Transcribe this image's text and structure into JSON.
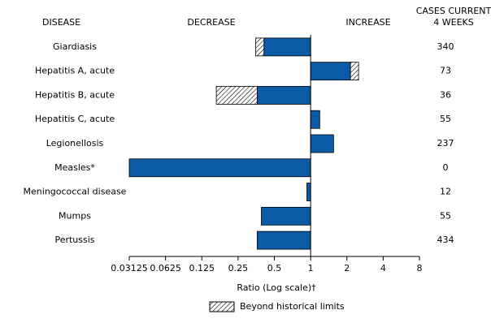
{
  "chart_data": {
    "type": "bar",
    "orientation": "horizontal",
    "log_scale": 2,
    "category_header": "DISEASE",
    "decrease_label": "DECREASE",
    "increase_label": "INCREASE",
    "cases_header": [
      "CASES CURRENT",
      "4 WEEKS"
    ],
    "categories": [
      "Giardiasis",
      "Hepatitis A, acute",
      "Hepatitis B, acute",
      "Hepatitis C, acute",
      "Legionellosis",
      "Measles*",
      "Meningococcal disease",
      "Mumps",
      "Pertussis"
    ],
    "values": [
      0.35,
      2.5,
      0.165,
      1.19,
      1.55,
      0.03125,
      0.93,
      0.39,
      0.36
    ],
    "historical_limits": [
      0.41,
      2.14,
      0.36,
      null,
      null,
      null,
      null,
      null,
      null
    ],
    "cases": [
      340,
      73,
      36,
      55,
      237,
      0,
      12,
      55,
      434
    ],
    "color": "#0b5aa6",
    "xlim": [
      0.03125,
      8
    ],
    "xticks": [
      0.03125,
      0.0625,
      0.125,
      0.25,
      0.5,
      1,
      2,
      4,
      8
    ],
    "x_label": "Ratio (Log scale)†",
    "legend": "Beyond historical limits"
  }
}
